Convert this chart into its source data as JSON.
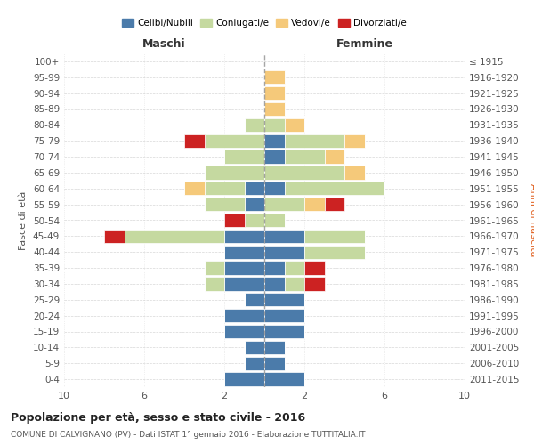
{
  "age_groups": [
    "0-4",
    "5-9",
    "10-14",
    "15-19",
    "20-24",
    "25-29",
    "30-34",
    "35-39",
    "40-44",
    "45-49",
    "50-54",
    "55-59",
    "60-64",
    "65-69",
    "70-74",
    "75-79",
    "80-84",
    "85-89",
    "90-94",
    "95-99",
    "100+"
  ],
  "birth_years": [
    "2011-2015",
    "2006-2010",
    "2001-2005",
    "1996-2000",
    "1991-1995",
    "1986-1990",
    "1981-1985",
    "1976-1980",
    "1971-1975",
    "1966-1970",
    "1961-1965",
    "1956-1960",
    "1951-1955",
    "1946-1950",
    "1941-1945",
    "1936-1940",
    "1931-1935",
    "1926-1930",
    "1921-1925",
    "1916-1920",
    "≤ 1915"
  ],
  "colors": {
    "celibi": "#4b7baa",
    "coniugati": "#c5d9a0",
    "vedovi": "#f5c97a",
    "divorziati": "#cc2222"
  },
  "male": {
    "celibi": [
      2,
      1,
      1,
      2,
      2,
      1,
      2,
      2,
      2,
      2,
      0,
      1,
      1,
      0,
      0,
      0,
      0,
      0,
      0,
      0,
      0
    ],
    "coniugati": [
      0,
      0,
      0,
      0,
      0,
      0,
      1,
      1,
      0,
      5,
      1,
      2,
      2,
      3,
      2,
      3,
      1,
      0,
      0,
      0,
      0
    ],
    "vedovi": [
      0,
      0,
      0,
      0,
      0,
      0,
      0,
      0,
      0,
      0,
      0,
      0,
      1,
      0,
      0,
      0,
      0,
      0,
      0,
      0,
      0
    ],
    "divorziati": [
      0,
      0,
      0,
      0,
      0,
      0,
      0,
      0,
      0,
      1,
      1,
      0,
      0,
      0,
      0,
      1,
      0,
      0,
      0,
      0,
      0
    ]
  },
  "female": {
    "celibi": [
      2,
      1,
      1,
      2,
      2,
      2,
      1,
      1,
      2,
      2,
      0,
      0,
      1,
      0,
      1,
      1,
      0,
      0,
      0,
      0,
      0
    ],
    "coniugati": [
      0,
      0,
      0,
      0,
      0,
      0,
      1,
      1,
      3,
      3,
      1,
      2,
      5,
      4,
      2,
      3,
      1,
      0,
      0,
      0,
      0
    ],
    "vedovi": [
      0,
      0,
      0,
      0,
      0,
      0,
      0,
      0,
      0,
      0,
      0,
      1,
      0,
      1,
      1,
      1,
      1,
      1,
      1,
      1,
      0
    ],
    "divorziati": [
      0,
      0,
      0,
      0,
      0,
      0,
      1,
      1,
      0,
      0,
      0,
      1,
      0,
      0,
      0,
      0,
      0,
      0,
      0,
      0,
      0
    ]
  },
  "xlim": 10,
  "title": "Popolazione per età, sesso e stato civile - 2016",
  "subtitle": "COMUNE DI CALVIGNANO (PV) - Dati ISTAT 1° gennaio 2016 - Elaborazione TUTTITALIA.IT",
  "xlabel_left": "Maschi",
  "xlabel_right": "Femmine",
  "ylabel_left": "Fasce di età",
  "ylabel_right": "Anni di nascita",
  "legend_labels": [
    "Celibi/Nubili",
    "Coniugati/e",
    "Vedovi/e",
    "Divorziati/e"
  ]
}
